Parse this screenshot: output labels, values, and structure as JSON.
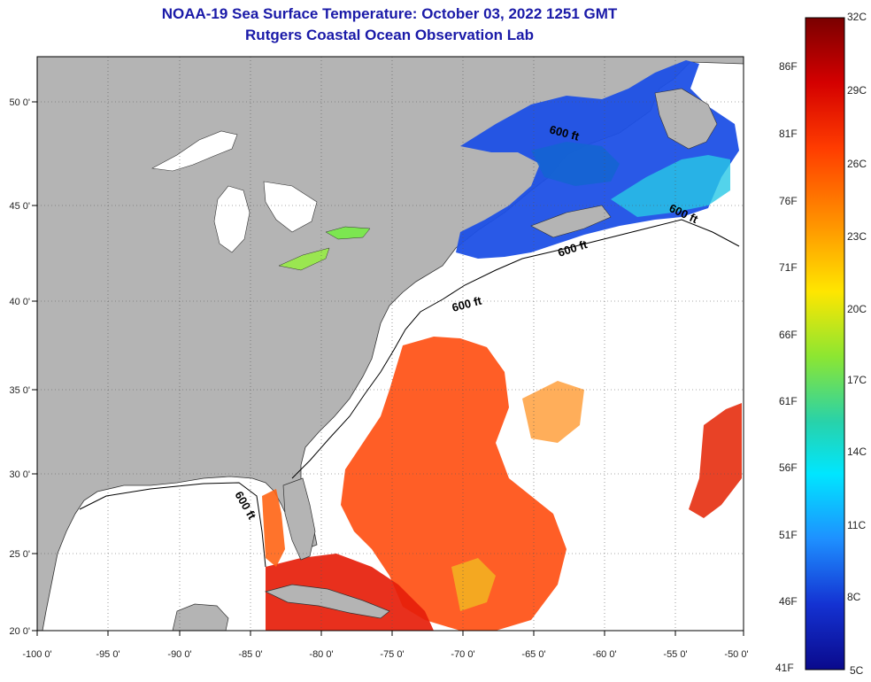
{
  "header": {
    "title": "NOAA-19 Sea Surface Temperature:  October 03, 2022 1251 GMT",
    "subtitle": "Rutgers Coastal Ocean Observation Lab"
  },
  "map": {
    "lat_labels": [
      "50 0'",
      "45 0'",
      "40 0'",
      "35 0'",
      "30 0'",
      "25 0'",
      "20 0'"
    ],
    "lon_labels": [
      "-100 0'",
      "-95 0'",
      "-90 0'",
      "-85 0'",
      "-80 0'",
      "-75 0'",
      "-70 0'",
      "-65 0'",
      "-60 0'",
      "-55 0'",
      "-50 0'"
    ],
    "isobath_label": "600 ft",
    "colors": {
      "land": "#b4b4b4",
      "ocean_nodata": "#ffffff"
    }
  },
  "colorbar": {
    "fahrenheit_labels": [
      "86F",
      "81F",
      "76F",
      "71F",
      "66F",
      "61F",
      "56F",
      "51F",
      "46F",
      "41F"
    ],
    "celsius_labels": [
      "32C",
      "29C",
      "26C",
      "23C",
      "20C",
      "17C",
      "14C",
      "11C",
      "8C",
      "5C"
    ],
    "colors": [
      "#7a0000",
      "#d40000",
      "#ff3c00",
      "#ff9600",
      "#ffe600",
      "#8ce632",
      "#28d2aa",
      "#00e6ff",
      "#1e90ff",
      "#1432d2",
      "#0a0a8c"
    ]
  }
}
